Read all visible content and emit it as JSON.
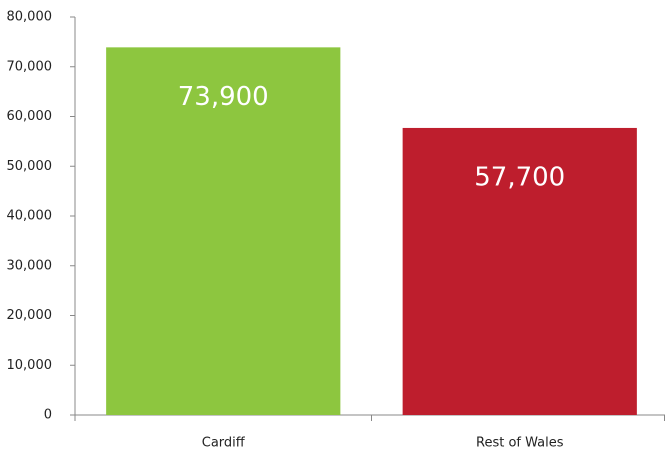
{
  "chart_data": {
    "type": "bar",
    "categories": [
      "Cardiff",
      "Rest of Wales"
    ],
    "values": [
      73900,
      57700
    ],
    "value_labels": [
      "73,900",
      "57,700"
    ],
    "colors": [
      "#8dc63f",
      "#be1e2d"
    ],
    "ylim": [
      0,
      80000
    ],
    "yticks": [
      0,
      {
        "value": 10000,
        "label": "10,000"
      },
      {
        "value": 20000,
        "label": "20,000"
      },
      {
        "value": 30000,
        "label": "30,000"
      },
      {
        "value": 40000,
        "label": "40,000"
      },
      {
        "value": 50000,
        "label": "50,000"
      },
      {
        "value": 60000,
        "label": "60,000"
      },
      {
        "value": 70000,
        "label": "70,000"
      },
      {
        "value": 80000,
        "label": "80,000"
      }
    ],
    "grid": false
  }
}
